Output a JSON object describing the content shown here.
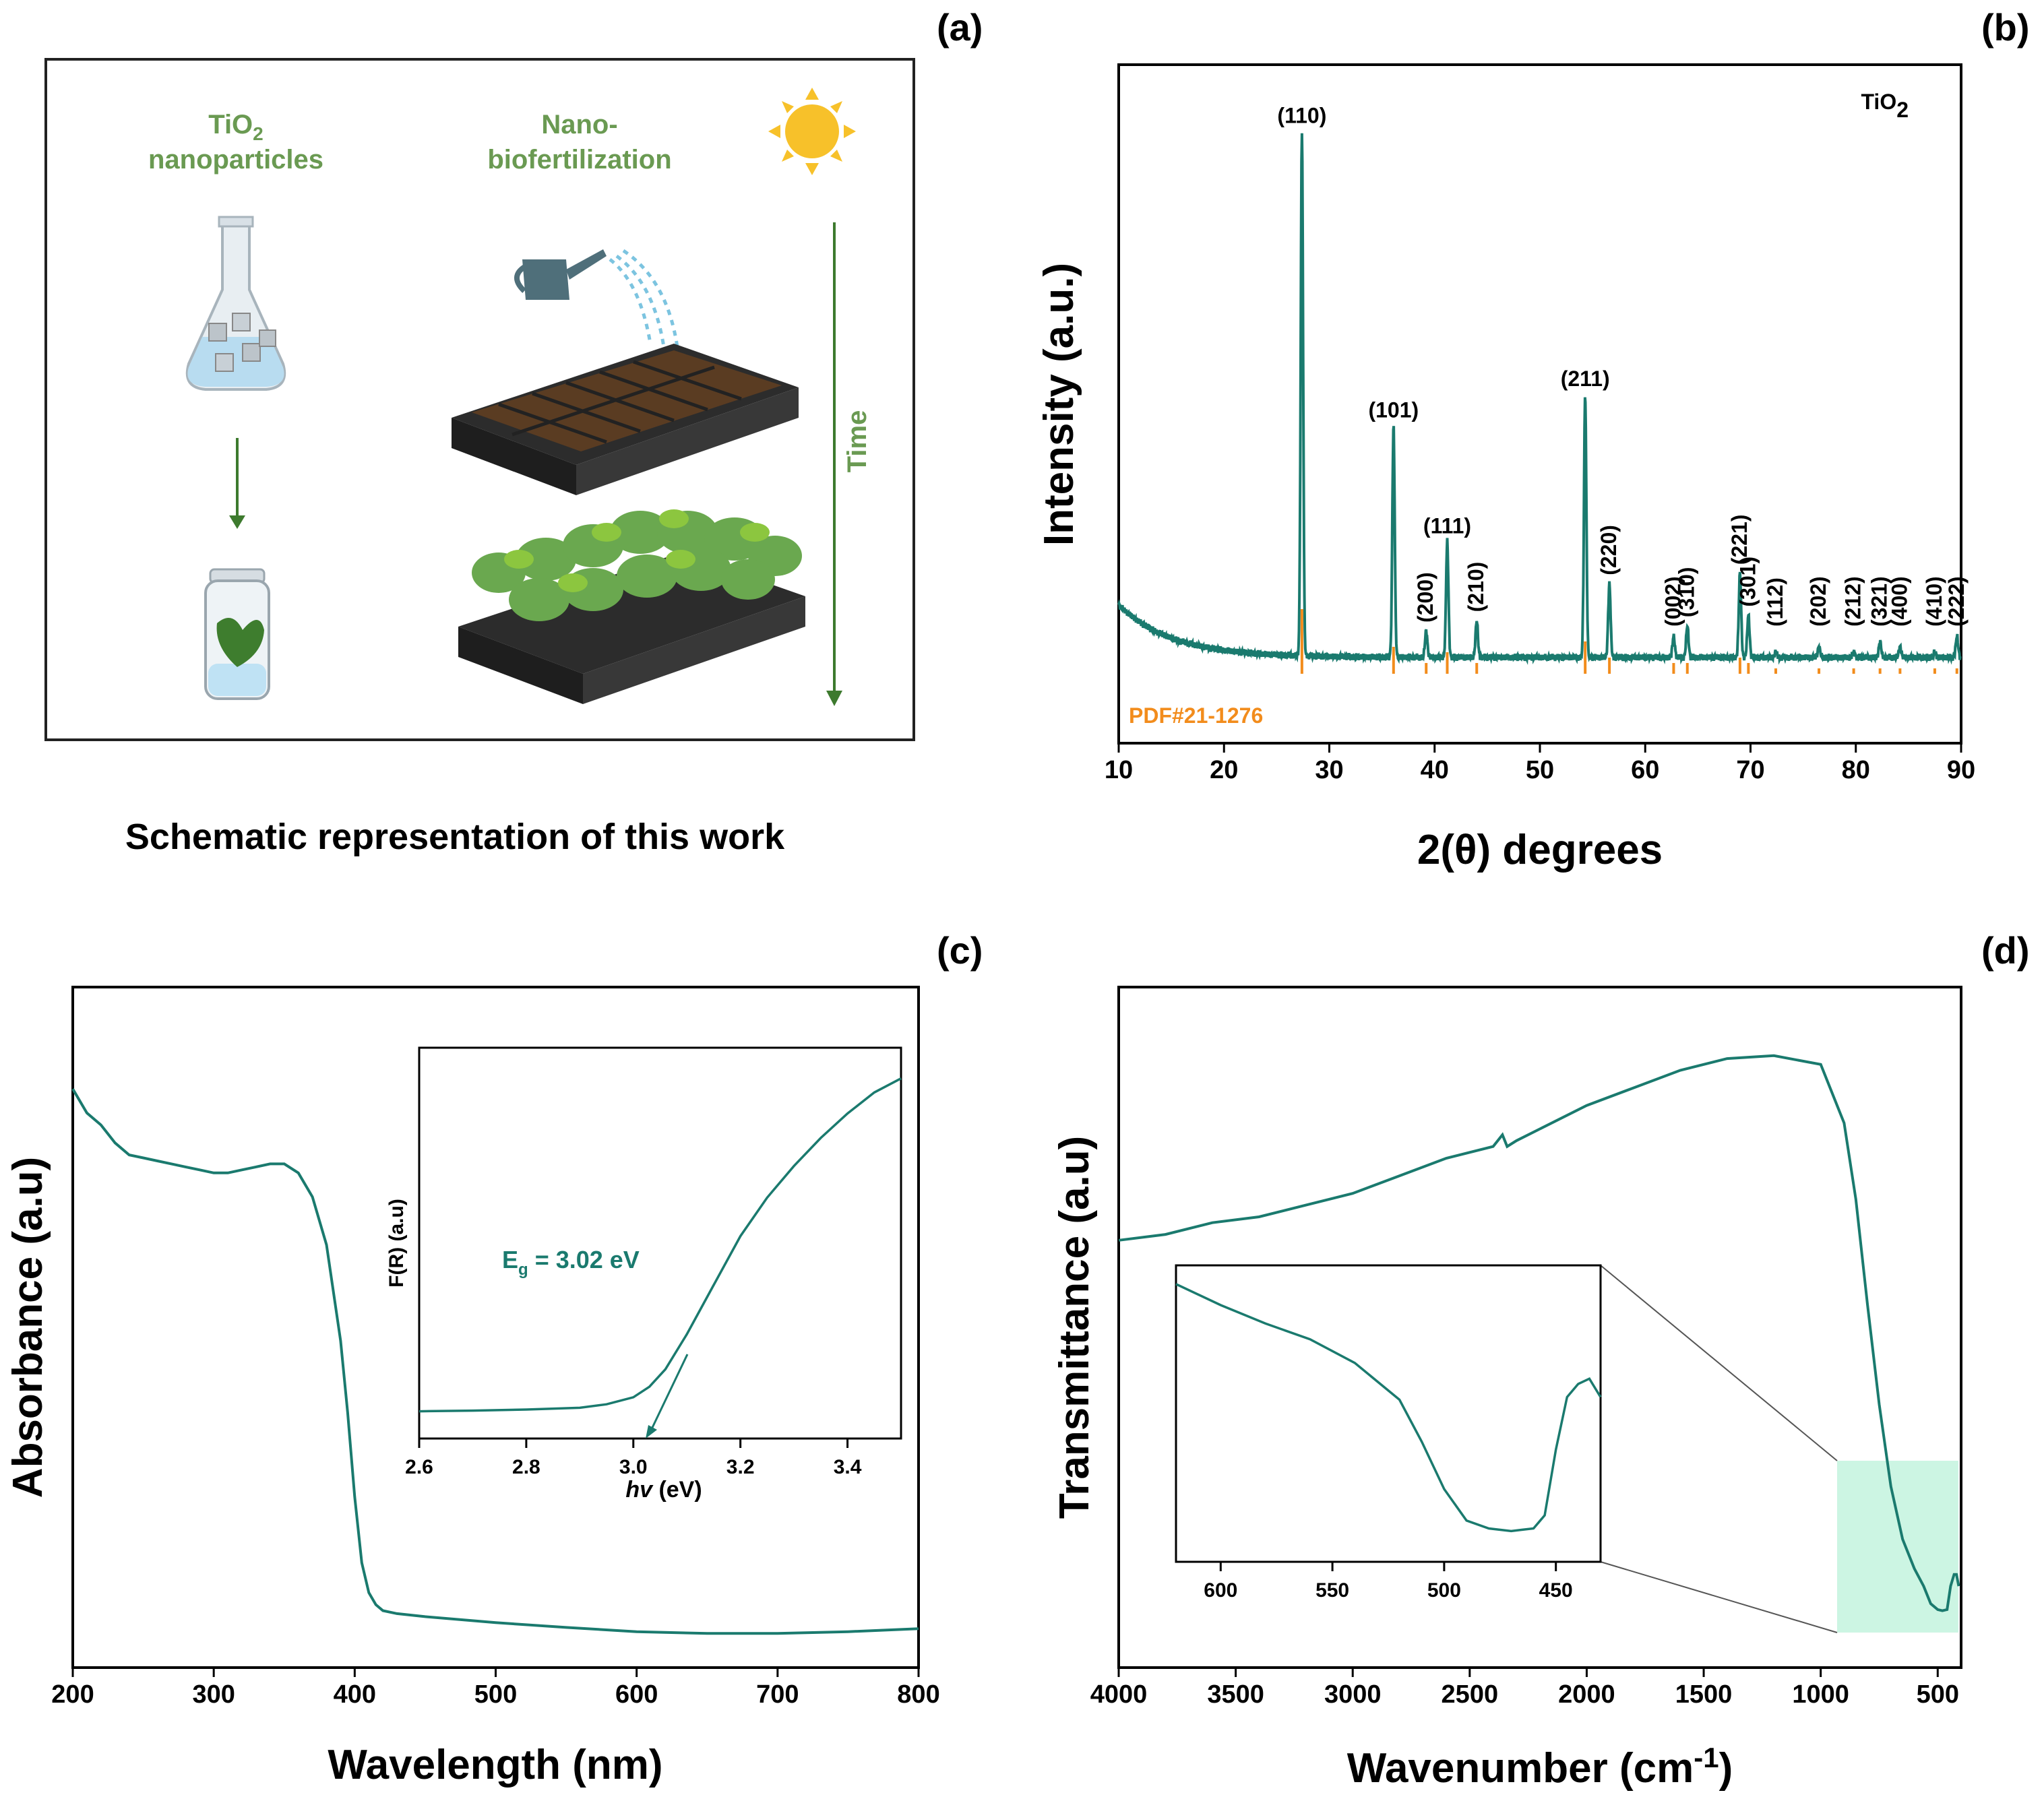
{
  "panels": {
    "a": {
      "label": "(a)",
      "caption": "Schematic representation of this work",
      "left_title_line1": "TiO",
      "left_title_sub": "2",
      "left_title_line2": "nanoparticles",
      "right_title_line1": "Nano-",
      "right_title_line2": "biofertilization",
      "time_label": "Time"
    },
    "b": {
      "label": "(b)"
    },
    "c": {
      "label": "(c)"
    },
    "d": {
      "label": "(d)"
    }
  },
  "colors": {
    "teal": "#1a7a6e",
    "orange": "#f28c1c",
    "green_text": "#6a9a52",
    "highlight": "#bff2dc"
  },
  "chart_data": [
    {
      "id": "xrd",
      "type": "line",
      "title": "TiO2",
      "title_main": "TiO",
      "title_sub": "2",
      "xlabel": "2(θ) degrees",
      "ylabel": "Intensity (a.u.)",
      "xlim": [
        10,
        90
      ],
      "xticks": [
        10,
        20,
        30,
        40,
        50,
        60,
        70,
        80,
        90
      ],
      "reference_label": "PDF#21-1276",
      "peaks": [
        {
          "x": 27.4,
          "h": 1.0,
          "label": "(110)",
          "ref": 0.12
        },
        {
          "x": 36.1,
          "h": 0.44,
          "label": "(101)",
          "ref": 0.05
        },
        {
          "x": 39.2,
          "h": 0.05,
          "label": "(200)",
          "ref": 0.02
        },
        {
          "x": 41.2,
          "h": 0.22,
          "label": "(111)",
          "ref": 0.04
        },
        {
          "x": 44.0,
          "h": 0.07,
          "label": "(210)",
          "ref": 0.02
        },
        {
          "x": 54.3,
          "h": 0.5,
          "label": "(211)",
          "ref": 0.06
        },
        {
          "x": 56.6,
          "h": 0.14,
          "label": "(220)",
          "ref": 0.03
        },
        {
          "x": 62.7,
          "h": 0.04,
          "label": "(002)",
          "ref": 0.02
        },
        {
          "x": 64.0,
          "h": 0.06,
          "label": "(310)",
          "ref": 0.02
        },
        {
          "x": 69.0,
          "h": 0.16,
          "label": "(221)",
          "ref": 0.03
        },
        {
          "x": 69.8,
          "h": 0.08,
          "label": "(301)",
          "ref": 0.02
        },
        {
          "x": 72.4,
          "h": 0.01,
          "label": "(112)",
          "ref": 0.01
        },
        {
          "x": 76.5,
          "h": 0.02,
          "label": "(202)",
          "ref": 0.01
        },
        {
          "x": 79.8,
          "h": 0.01,
          "label": "(212)",
          "ref": 0.01
        },
        {
          "x": 82.3,
          "h": 0.03,
          "label": "(321)",
          "ref": 0.01
        },
        {
          "x": 84.2,
          "h": 0.02,
          "label": "(400)",
          "ref": 0.01
        },
        {
          "x": 87.5,
          "h": 0.01,
          "label": "(410)",
          "ref": 0.01
        },
        {
          "x": 89.6,
          "h": 0.04,
          "label": "(222)",
          "ref": 0.01
        }
      ]
    },
    {
      "id": "uvvis",
      "type": "line",
      "xlabel": "Wavelength (nm)",
      "ylabel": "Absorbance (a.u)",
      "xlim": [
        200,
        800
      ],
      "ylim": [
        0,
        1
      ],
      "xticks": [
        200,
        300,
        400,
        500,
        600,
        700,
        800
      ],
      "x": [
        200,
        210,
        220,
        230,
        240,
        250,
        260,
        270,
        280,
        290,
        300,
        310,
        320,
        330,
        340,
        350,
        360,
        370,
        380,
        390,
        395,
        400,
        405,
        410,
        415,
        420,
        430,
        450,
        500,
        550,
        600,
        650,
        700,
        750,
        800
      ],
      "y": [
        0.92,
        0.88,
        0.86,
        0.83,
        0.81,
        0.805,
        0.8,
        0.795,
        0.79,
        0.785,
        0.78,
        0.78,
        0.785,
        0.79,
        0.795,
        0.795,
        0.78,
        0.74,
        0.66,
        0.5,
        0.38,
        0.24,
        0.13,
        0.08,
        0.06,
        0.05,
        0.045,
        0.04,
        0.03,
        0.022,
        0.015,
        0.012,
        0.012,
        0.015,
        0.02
      ],
      "inset": {
        "xlabel": "hv (eV)",
        "xlabel_italic": "hv",
        "xlabel_unit": " (eV)",
        "ylabel": "F(R) (a.u)",
        "xlim": [
          2.6,
          3.5
        ],
        "ylim": [
          0,
          1
        ],
        "xticks": [
          "2.6",
          "2.8",
          "3.0",
          "3.2",
          "3.4"
        ],
        "annotation": "Eg = 3.02 eV",
        "annotation_main": "E",
        "annotation_sub": "g",
        "annotation_rest": " = 3.02 eV",
        "x": [
          2.6,
          2.7,
          2.8,
          2.9,
          2.95,
          3.0,
          3.03,
          3.06,
          3.1,
          3.15,
          3.2,
          3.25,
          3.3,
          3.35,
          3.4,
          3.45,
          3.5
        ],
        "y": [
          0.02,
          0.022,
          0.025,
          0.03,
          0.04,
          0.06,
          0.09,
          0.14,
          0.24,
          0.38,
          0.52,
          0.63,
          0.72,
          0.8,
          0.87,
          0.93,
          0.97
        ]
      }
    },
    {
      "id": "ftir",
      "type": "line",
      "xlabel_main": "Wavenumber (cm",
      "xlabel_sup": "-1",
      "xlabel_end": ")",
      "ylabel": "Transmittance (a.u)",
      "xlim": [
        4000,
        400
      ],
      "ylim": [
        0,
        1
      ],
      "xticks": [
        4000,
        3500,
        3000,
        2500,
        2000,
        1500,
        1000,
        500
      ],
      "x": [
        4000,
        3800,
        3600,
        3400,
        3200,
        3000,
        2800,
        2600,
        2400,
        2360,
        2340,
        2300,
        2200,
        2000,
        1800,
        1600,
        1400,
        1200,
        1000,
        960,
        900,
        850,
        800,
        750,
        700,
        650,
        600,
        560,
        530,
        500,
        480,
        460,
        445,
        430,
        420,
        410
      ],
      "y": [
        0.66,
        0.67,
        0.69,
        0.7,
        0.72,
        0.74,
        0.77,
        0.8,
        0.82,
        0.84,
        0.82,
        0.83,
        0.85,
        0.89,
        0.92,
        0.95,
        0.97,
        0.975,
        0.96,
        0.92,
        0.86,
        0.73,
        0.55,
        0.38,
        0.24,
        0.15,
        0.1,
        0.07,
        0.04,
        0.03,
        0.028,
        0.03,
        0.07,
        0.09,
        0.09,
        0.07
      ],
      "inset": {
        "xlim": [
          620,
          430
        ],
        "xticks": [
          "600",
          "550",
          "500",
          "450"
        ],
        "x": [
          620,
          600,
          580,
          560,
          540,
          520,
          510,
          500,
          490,
          480,
          470,
          465,
          460,
          455,
          450,
          445,
          440,
          435,
          430
        ],
        "y": [
          0.98,
          0.9,
          0.83,
          0.77,
          0.68,
          0.54,
          0.38,
          0.2,
          0.08,
          0.05,
          0.04,
          0.045,
          0.05,
          0.1,
          0.35,
          0.55,
          0.6,
          0.62,
          0.55
        ]
      }
    }
  ]
}
